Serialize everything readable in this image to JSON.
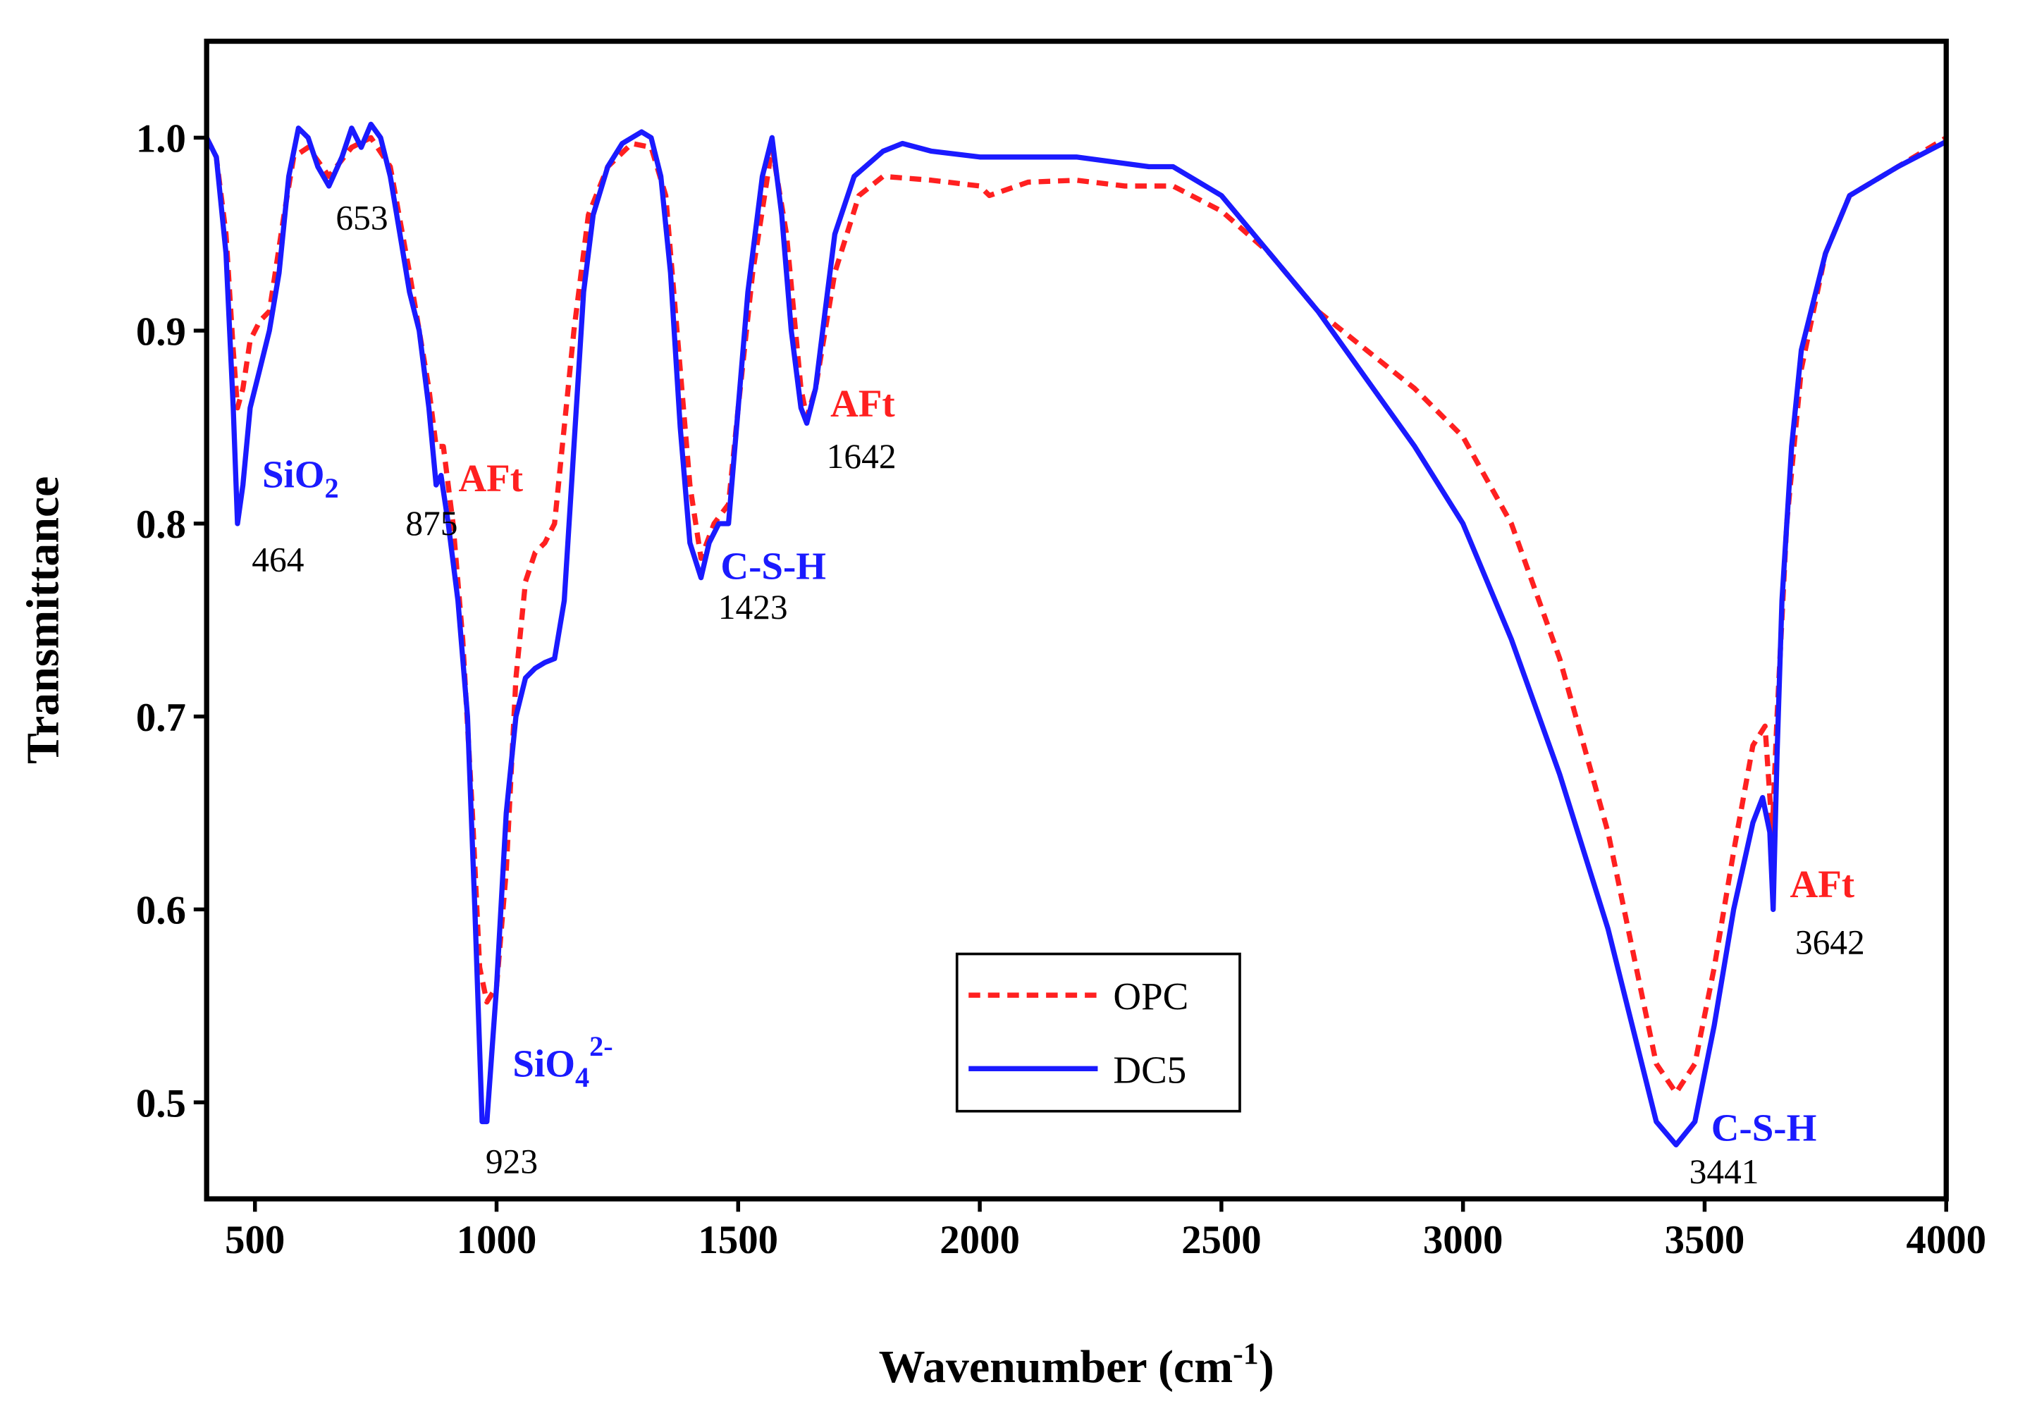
{
  "chart_data": {
    "type": "line",
    "xlabel": {
      "text": "Wavenumber (cm",
      "sup": "-1",
      "after": ")"
    },
    "ylabel": "Transmittance",
    "xlim": [
      400,
      4000
    ],
    "ylim": [
      0.45,
      1.05
    ],
    "xticks": [
      500,
      1000,
      1500,
      2000,
      2500,
      3000,
      3500,
      4000
    ],
    "yticks": [
      0.5,
      0.6,
      0.7,
      0.8,
      0.9,
      {
        "value": 1,
        "label": "1.0"
      }
    ],
    "legend": "lower center",
    "series": [
      {
        "name": "OPC",
        "color": "#ff2020",
        "dash": true,
        "x": [
          400,
          420,
          440,
          455,
          464,
          475,
          490,
          510,
          530,
          560,
          580,
          610,
          653,
          700,
          740,
          780,
          820,
          860,
          875,
          890,
          910,
          930,
          950,
          965,
          980,
          1000,
          1020,
          1040,
          1060,
          1080,
          1100,
          1120,
          1140,
          1160,
          1190,
          1230,
          1280,
          1320,
          1350,
          1380,
          1400,
          1423,
          1450,
          1480,
          1500,
          1530,
          1570,
          1600,
          1630,
          1642,
          1660,
          1700,
          1750,
          1800,
          1900,
          2000,
          2020,
          2100,
          2200,
          2300,
          2400,
          2500,
          2600,
          2700,
          2800,
          2900,
          3000,
          3100,
          3200,
          3300,
          3350,
          3400,
          3441,
          3480,
          3520,
          3560,
          3600,
          3625,
          3640,
          3650,
          3670,
          3700,
          3750,
          3800,
          3900,
          4000
        ],
        "values": [
          1.0,
          0.99,
          0.95,
          0.89,
          0.86,
          0.87,
          0.895,
          0.905,
          0.91,
          0.96,
          0.99,
          0.995,
          0.98,
          0.995,
          1.0,
          0.985,
          0.93,
          0.87,
          0.84,
          0.84,
          0.8,
          0.74,
          0.65,
          0.57,
          0.552,
          0.56,
          0.62,
          0.72,
          0.77,
          0.785,
          0.79,
          0.8,
          0.85,
          0.9,
          0.96,
          0.985,
          0.997,
          0.995,
          0.97,
          0.88,
          0.82,
          0.782,
          0.8,
          0.81,
          0.86,
          0.93,
          0.995,
          0.95,
          0.87,
          0.855,
          0.87,
          0.93,
          0.97,
          0.98,
          0.978,
          0.975,
          0.97,
          0.977,
          0.978,
          0.975,
          0.975,
          0.962,
          0.94,
          0.91,
          0.89,
          0.87,
          0.845,
          0.8,
          0.73,
          0.64,
          0.58,
          0.52,
          0.505,
          0.52,
          0.57,
          0.63,
          0.685,
          0.695,
          0.64,
          0.7,
          0.8,
          0.88,
          0.94,
          0.97,
          0.985,
          1.0
        ]
      },
      {
        "name": "DC5",
        "color": "#1a1aff",
        "dash": false,
        "x": [
          400,
          420,
          440,
          455,
          464,
          475,
          490,
          510,
          530,
          550,
          570,
          590,
          610,
          630,
          653,
          680,
          700,
          720,
          740,
          760,
          780,
          800,
          820,
          840,
          860,
          875,
          885,
          900,
          920,
          940,
          955,
          970,
          980,
          1000,
          1020,
          1040,
          1060,
          1080,
          1100,
          1120,
          1140,
          1160,
          1180,
          1200,
          1230,
          1260,
          1300,
          1320,
          1340,
          1360,
          1380,
          1400,
          1423,
          1440,
          1460,
          1480,
          1500,
          1520,
          1550,
          1570,
          1590,
          1610,
          1630,
          1642,
          1660,
          1680,
          1700,
          1740,
          1800,
          1840,
          1900,
          2000,
          2200,
          2350,
          2400,
          2500,
          2600,
          2700,
          2800,
          2900,
          3000,
          3100,
          3200,
          3300,
          3350,
          3400,
          3441,
          3480,
          3520,
          3560,
          3600,
          3620,
          3635,
          3642,
          3650,
          3660,
          3680,
          3700,
          3750,
          3800,
          3900,
          4000
        ],
        "values": [
          1.0,
          0.99,
          0.94,
          0.86,
          0.8,
          0.82,
          0.86,
          0.88,
          0.9,
          0.93,
          0.98,
          1.005,
          1.0,
          0.985,
          0.975,
          0.99,
          1.005,
          0.995,
          1.007,
          1.0,
          0.98,
          0.95,
          0.92,
          0.9,
          0.86,
          0.82,
          0.825,
          0.8,
          0.76,
          0.7,
          0.6,
          0.49,
          0.49,
          0.56,
          0.65,
          0.7,
          0.72,
          0.725,
          0.728,
          0.73,
          0.76,
          0.84,
          0.92,
          0.96,
          0.985,
          0.997,
          1.003,
          1.0,
          0.98,
          0.93,
          0.85,
          0.79,
          0.772,
          0.79,
          0.8,
          0.8,
          0.86,
          0.92,
          0.98,
          1.0,
          0.96,
          0.9,
          0.86,
          0.852,
          0.87,
          0.91,
          0.95,
          0.98,
          0.993,
          0.997,
          0.993,
          0.99,
          0.99,
          0.985,
          0.985,
          0.97,
          0.94,
          0.91,
          0.875,
          0.84,
          0.8,
          0.74,
          0.67,
          0.59,
          0.54,
          0.49,
          0.478,
          0.49,
          0.54,
          0.6,
          0.645,
          0.658,
          0.64,
          0.6,
          0.68,
          0.76,
          0.84,
          0.89,
          0.94,
          0.97,
          0.985,
          0.998
        ]
      }
    ],
    "annotations": [
      {
        "text": "653"
      },
      {
        "text": "464"
      },
      {
        "text": "SiO",
        "sub": "2",
        "color": "#1a1aff"
      },
      {
        "text": "875"
      },
      {
        "text": "AFt",
        "color": "#ff2020"
      },
      {
        "text": "923"
      },
      {
        "text": "SiO",
        "sub": "4",
        "sup": "2-",
        "color": "#1a1aff"
      },
      {
        "text": "1423"
      },
      {
        "text": "C-S-H",
        "color": "#1a1aff"
      },
      {
        "text": "1642"
      },
      {
        "text": "AFt",
        "color": "#ff2020"
      },
      {
        "text": "3441"
      },
      {
        "text": "C-S-H",
        "color": "#1a1aff"
      },
      {
        "text": "3642"
      },
      {
        "text": "AFt",
        "color": "#ff2020"
      }
    ]
  }
}
